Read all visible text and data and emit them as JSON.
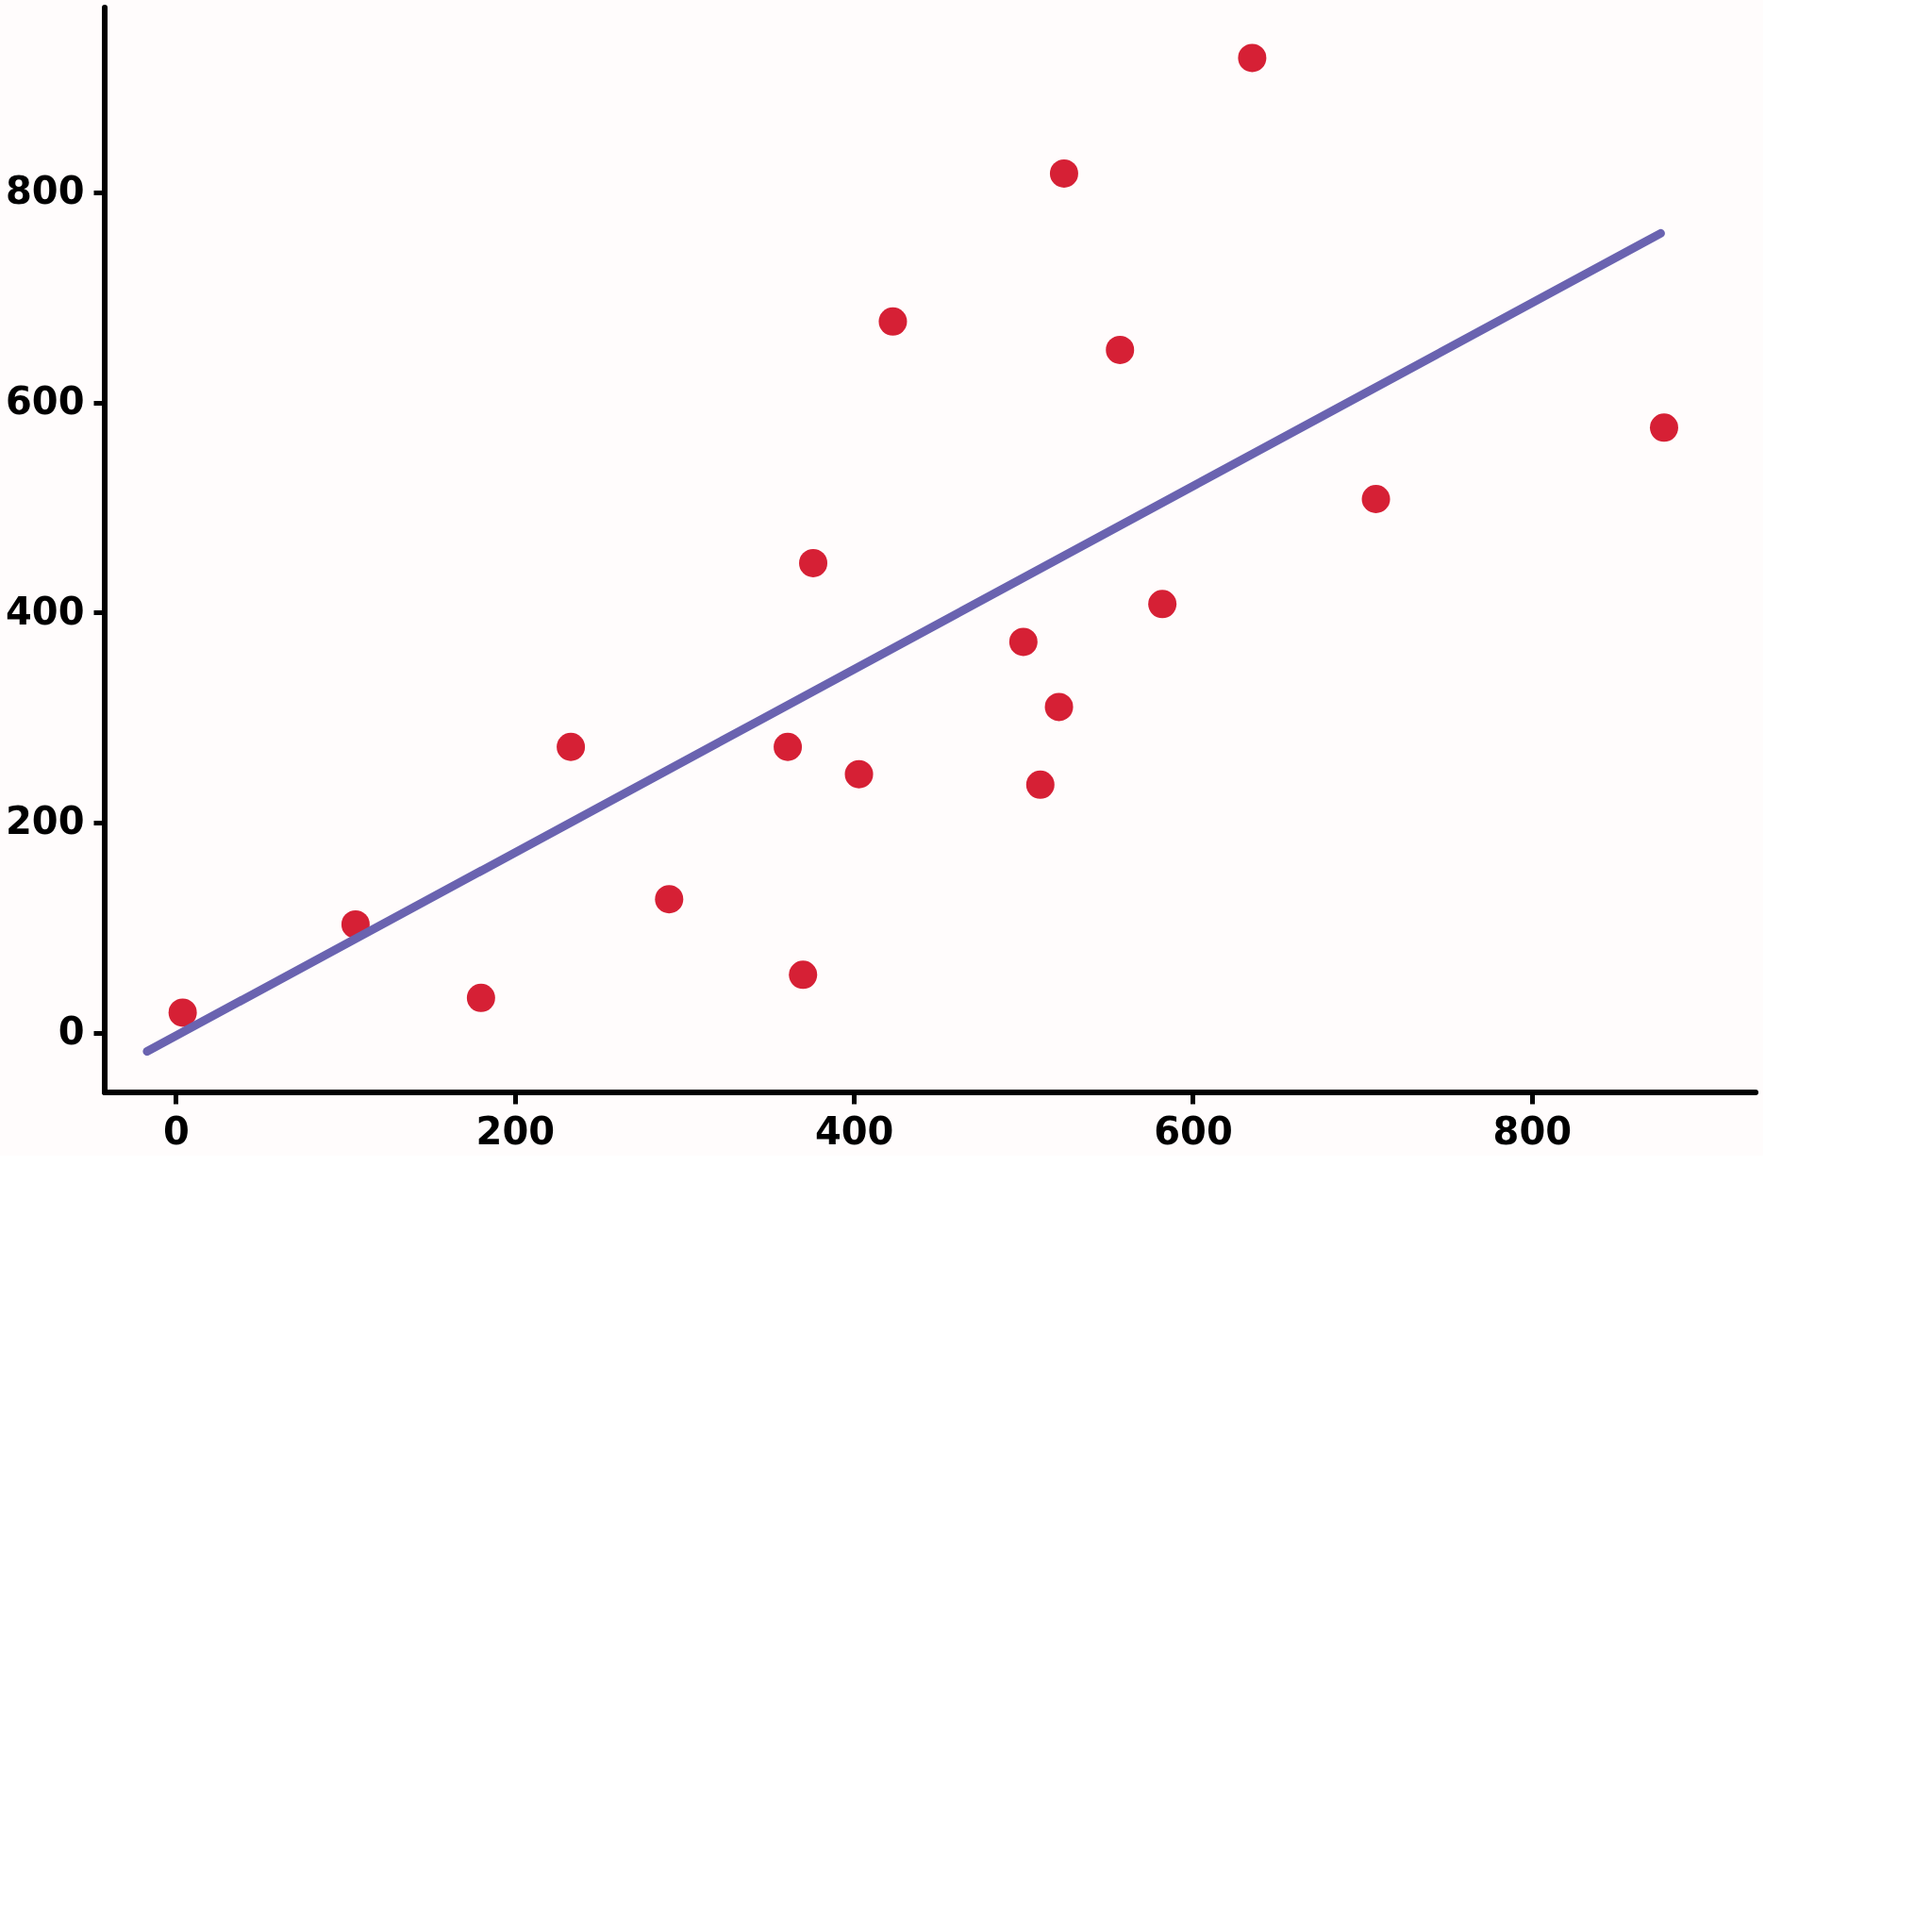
{
  "chart_data": {
    "type": "scatter",
    "xlim": [
      -42,
      932
    ],
    "ylim": [
      -57,
      976
    ],
    "xticks": [
      0,
      200,
      400,
      600,
      800
    ],
    "yticks": [
      0,
      200,
      400,
      600,
      800
    ],
    "grid": false,
    "series": [
      {
        "color": "#d62035",
        "marker": "circle",
        "x": [
          4,
          106,
          180,
          233,
          291,
          361,
          370,
          376,
          403,
          423,
          500,
          510,
          521,
          524,
          557,
          582,
          635,
          708,
          878
        ],
        "values": [
          19,
          103,
          33,
          272,
          127,
          272,
          55,
          447,
          246,
          677,
          372,
          236,
          310,
          818,
          650,
          408,
          928,
          508,
          576
        ]
      },
      {
        "type": "line",
        "color": "#6a63b0",
        "x": [
          -17,
          876
        ],
        "values": [
          -18,
          761
        ]
      }
    ]
  }
}
